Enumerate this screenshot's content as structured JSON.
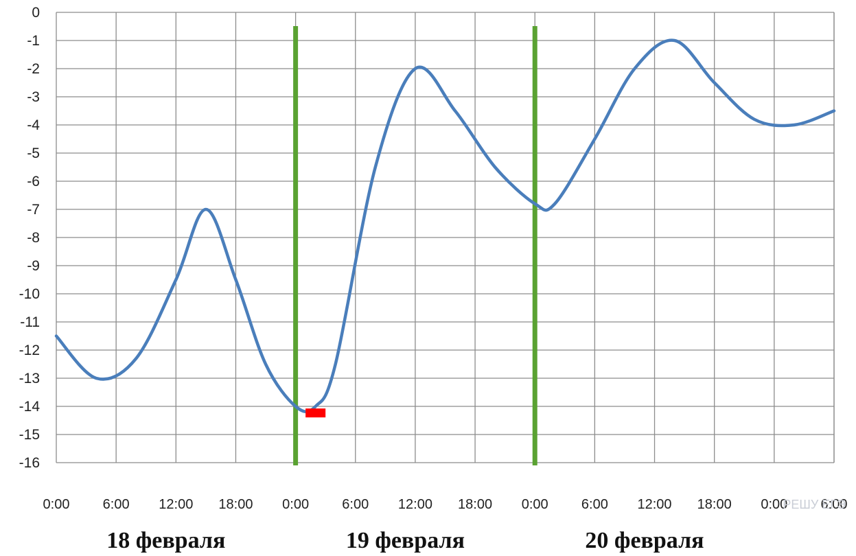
{
  "chart_data": {
    "type": "line",
    "ylim": [
      -16,
      0
    ],
    "yticks": [
      "0",
      "-1",
      "-2",
      "-3",
      "-4",
      "-5",
      "-6",
      "-7",
      "-8",
      "-9",
      "-10",
      "-11",
      "-12",
      "-13",
      "-14",
      "-15",
      "-16"
    ],
    "xlim_hours": [
      0,
      78
    ],
    "xticks": [
      "0:00",
      "6:00",
      "12:00",
      "18:00",
      "0:00",
      "6:00",
      "12:00",
      "18:00",
      "0:00",
      "6:00",
      "12:00",
      "18:00",
      "0:00",
      "6:00"
    ],
    "day_labels": [
      "18 февраля",
      "19 февраля",
      "20 февраля"
    ],
    "grid": true,
    "series": [
      {
        "color": "#4a7ebb",
        "x_hours": [
          0,
          4,
          8,
          12,
          15,
          18,
          21,
          24,
          26,
          28,
          32,
          36,
          40,
          44,
          48,
          50,
          54,
          58,
          62,
          66,
          70,
          74,
          78
        ],
        "values": [
          -11.5,
          -13,
          -12.3,
          -9.5,
          -7,
          -9.5,
          -12.5,
          -14,
          -14,
          -12.5,
          -5.5,
          -2,
          -3.5,
          -5.5,
          -6.8,
          -6.8,
          -4.5,
          -2,
          -1,
          -2.5,
          -3.8,
          -4,
          -3.5
        ]
      }
    ],
    "vertical_markers": [
      {
        "x_hours": 24,
        "color": "#5aa232"
      },
      {
        "x_hours": 48,
        "color": "#5aa232"
      }
    ],
    "highlight": {
      "x_hours_start": 25,
      "x_hours_end": 27,
      "y": -14.1,
      "color": "#ff0000"
    },
    "watermark": "РЕШУ ЕГЭ"
  }
}
